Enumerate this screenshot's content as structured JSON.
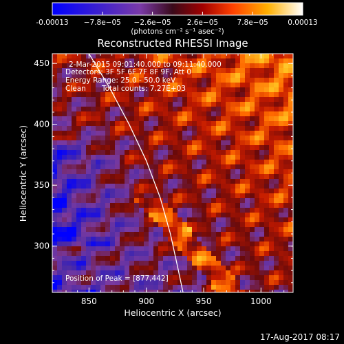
{
  "chart_data": {
    "type": "heatmap",
    "title": "Reconstructed RHESSI Image",
    "xlabel": "Heliocentric X (arcsec)",
    "ylabel": "Heliocentric Y (arcsec)",
    "xlim": [
      818,
      1028
    ],
    "ylim": [
      262,
      458
    ],
    "x_ticks": [
      {
        "value": 850,
        "label": "850"
      },
      {
        "value": 900,
        "label": "900"
      },
      {
        "value": 950,
        "label": "950"
      },
      {
        "value": 1000,
        "label": "1000"
      }
    ],
    "y_ticks": [
      {
        "value": 300,
        "label": "300"
      },
      {
        "value": 350,
        "label": "350"
      },
      {
        "value": 400,
        "label": "400"
      },
      {
        "value": 450,
        "label": "450"
      }
    ],
    "colorbar": {
      "range": [
        -0.00013,
        0.00013
      ],
      "ticks": [
        {
          "value": -0.00013,
          "label": "-0.00013"
        },
        {
          "value": -7.8e-05,
          "label": "−7.8e−05"
        },
        {
          "value": -2.6e-05,
          "label": "−2.6e−05"
        },
        {
          "value": 2.6e-05,
          "label": "2.6e−05"
        },
        {
          "value": 7.8e-05,
          "label": "7.8e−05"
        },
        {
          "value": 0.00013,
          "label": "0.00013"
        }
      ],
      "unit_label": "(photons cm⁻² s⁻¹ asec⁻²)"
    },
    "annotations": {
      "time_range": "2-Mar-2015 09:01:40.000 to 09:11:40.000",
      "detectors": "Detectors: 3F 5F 6F 7F 8F 9F, Att 0",
      "energy": "Energy Range: 25.0 - 50.0 keV",
      "method": "Clean",
      "total_counts": "Total counts: 7.27E+03",
      "peak": "Position of Peak = [877,442]"
    },
    "peak_position": [
      877,
      442
    ],
    "limb_curve": [
      [
        850,
        458
      ],
      [
        868,
        430
      ],
      [
        885,
        400
      ],
      [
        900,
        370
      ],
      [
        912,
        340
      ],
      [
        921,
        310
      ],
      [
        928,
        280
      ],
      [
        932,
        262
      ]
    ],
    "timestamp": "17-Aug-2017 08:17",
    "grid": false
  },
  "colors": {
    "background": "#000000",
    "text": "#ffffff",
    "limb": "#ffffff",
    "colormap": [
      "#0000ff",
      "#4a2aa6",
      "#7a3aa0",
      "#6a0a0a",
      "#c41a00",
      "#ff6a00",
      "#ffc020",
      "#ffff90"
    ]
  }
}
